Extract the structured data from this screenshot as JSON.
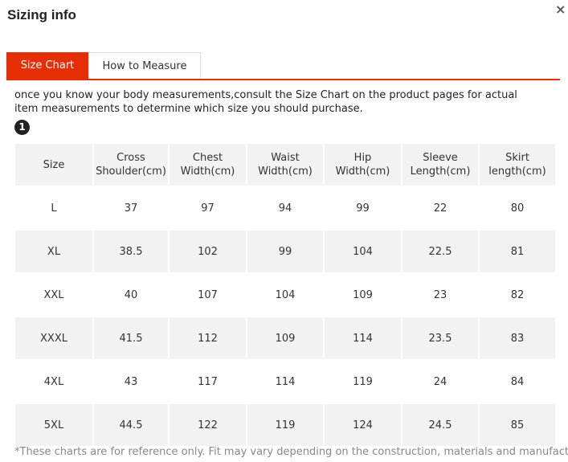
{
  "header": {
    "title": "Sizing info",
    "close": "×"
  },
  "tabs": [
    "Size Chart",
    "How to Measure"
  ],
  "description": "once you know your body measurements,consult the Size Chart on the product pages for actual item measurements to determine which size you should purchase.",
  "step": "1",
  "table": {
    "columns": [
      "Size",
      "Cross Shoulder(cm)",
      "Chest Width(cm)",
      "Waist Width(cm)",
      "Hip Width(cm)",
      "Sleeve Length(cm)",
      "Skirt length(cm)"
    ],
    "rows": [
      [
        "L",
        "37",
        "97",
        "94",
        "99",
        "22",
        "80"
      ],
      [
        "XL",
        "38.5",
        "102",
        "99",
        "104",
        "22.5",
        "81"
      ],
      [
        "XXL",
        "40",
        "107",
        "104",
        "109",
        "23",
        "82"
      ],
      [
        "XXXL",
        "41.5",
        "112",
        "109",
        "114",
        "23.5",
        "83"
      ],
      [
        "4XL",
        "43",
        "117",
        "114",
        "119",
        "24",
        "84"
      ],
      [
        "5XL",
        "44.5",
        "122",
        "119",
        "124",
        "24.5",
        "85"
      ]
    ]
  },
  "footnote": "*These charts are for reference only. Fit may vary depending on the construction, materials and manufacturer."
}
